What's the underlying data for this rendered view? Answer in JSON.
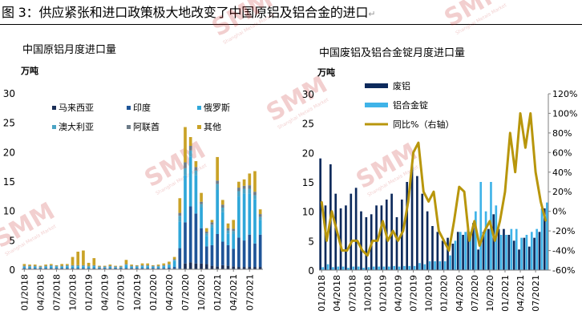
{
  "page_title": "图 3：供应紧张和进口政策极大地改变了中国原铝及铝合金的进口",
  "title_mark": "↵",
  "watermark": {
    "logo": "SMM",
    "sub": "Shanghai Metals Market"
  },
  "chart_data": [
    {
      "type": "bar",
      "stacked": true,
      "title": "中国原铝月度进口量",
      "ylabel": "万吨",
      "ylim": [
        0,
        30
      ],
      "yticks": [
        0,
        5,
        10,
        15,
        20,
        25,
        30
      ],
      "xtick_labels": [
        "01/2018",
        "04/2018",
        "07/2018",
        "10/2018",
        "01/2019",
        "04/2019",
        "07/2019",
        "10/2019",
        "01/2020",
        "04/2020",
        "07/2020",
        "10/2020",
        "01/2021",
        "04/2021",
        "07/2021"
      ],
      "legend_position": "top-left",
      "grid": false,
      "series": [
        {
          "name": "马来西亚",
          "color": "#1b2f57",
          "values": [
            0.1,
            0.1,
            0.1,
            0.1,
            0.1,
            0.1,
            0.1,
            0.1,
            0.1,
            0.1,
            0.1,
            0.1,
            0.1,
            0.1,
            0.1,
            0.1,
            0.1,
            0.1,
            0.1,
            0.1,
            0.1,
            0.1,
            0.1,
            0.1,
            0.1,
            0.1,
            0.1,
            0.1,
            0.1,
            0.1,
            1.0,
            1.2,
            1.0,
            1.0,
            0.9,
            0.6,
            0.5,
            0.7,
            0.6,
            0.5,
            0.4,
            0.4,
            0.4,
            0.4,
            0.4
          ]
        },
        {
          "name": "印度",
          "color": "#1f5598",
          "values": [
            0.1,
            0.1,
            0.1,
            0.1,
            0.1,
            0.1,
            0.1,
            0.1,
            0.1,
            0.1,
            0.1,
            0.1,
            0.1,
            0.1,
            0.1,
            0.1,
            0.1,
            0.1,
            0.1,
            0.1,
            0.1,
            0.1,
            0.1,
            0.1,
            0.1,
            0.1,
            0.1,
            0.2,
            0.3,
            3.5,
            7.0,
            9.5,
            8.5,
            6.0,
            3.0,
            3.5,
            5.5,
            4.0,
            3.5,
            3.0,
            5.0,
            4.5,
            5.5,
            4.0,
            5.5
          ]
        },
        {
          "name": "俄罗斯",
          "color": "#2fa7d9",
          "values": [
            0.2,
            0.2,
            0.2,
            0.1,
            0.2,
            0.3,
            0.2,
            0.2,
            0.3,
            0.3,
            0.3,
            0.3,
            0.2,
            0.3,
            0.1,
            0.1,
            0.2,
            0.1,
            0.1,
            0.5,
            0.2,
            0.2,
            0.3,
            0.3,
            0.2,
            0.2,
            0.3,
            0.4,
            1.0,
            4.5,
            8.0,
            8.5,
            6.5,
            3.5,
            1.8,
            3.0,
            7.5,
            5.0,
            2.0,
            2.5,
            7.0,
            8.0,
            7.0,
            7.5,
            2.5
          ]
        },
        {
          "name": "澳大利亚",
          "color": "#4aa4c4",
          "values": [
            0.1,
            0.1,
            0.1,
            0.1,
            0.1,
            0.1,
            0.1,
            0.1,
            0.1,
            0.1,
            0.1,
            0.1,
            0.1,
            0.1,
            0.1,
            0.1,
            0.1,
            0.1,
            0.1,
            0.1,
            0.1,
            0.1,
            0.1,
            0.1,
            0.1,
            0.1,
            0.1,
            0.1,
            0.2,
            1.0,
            1.2,
            1.0,
            0.8,
            0.6,
            0.4,
            0.5,
            1.0,
            0.8,
            0.5,
            0.5,
            0.9,
            0.8,
            0.8,
            0.7,
            0.5
          ]
        },
        {
          "name": "阿联酋",
          "color": "#6d7c88",
          "values": [
            0.1,
            0.1,
            0.1,
            0.1,
            0.1,
            0.1,
            0.1,
            0.1,
            0.1,
            0.1,
            0.1,
            0.1,
            0.1,
            0.1,
            0.1,
            0.1,
            0.1,
            0.1,
            0.1,
            0.1,
            0.1,
            0.1,
            0.1,
            0.1,
            0.1,
            0.1,
            0.1,
            0.1,
            0.1,
            0.5,
            1.0,
            0.8,
            0.6,
            0.4,
            0.3,
            0.4,
            0.6,
            0.5,
            0.4,
            0.4,
            0.6,
            0.5,
            0.6,
            0.6,
            0.5
          ]
        },
        {
          "name": "其他",
          "color": "#c9a227",
          "values": [
            0.3,
            0.2,
            0.2,
            0.1,
            0.2,
            0.2,
            0.1,
            0.3,
            0.2,
            1.4,
            2.3,
            2.5,
            0.5,
            1.2,
            0.1,
            0.1,
            0.2,
            0.1,
            0.1,
            0.7,
            0.2,
            0.1,
            0.3,
            0.3,
            0.1,
            0.2,
            0.3,
            0.4,
            0.4,
            2.5,
            6.0,
            1.5,
            1.0,
            1.5,
            0.6,
            0.4,
            4.0,
            0.8,
            0.8,
            1.5,
            1.0,
            1.1,
            2.0,
            3.5,
            0.8
          ]
        }
      ]
    },
    {
      "type": "bar+line",
      "title": "中国废铝及铝合金锭月度进口量",
      "ylabel": "万吨",
      "ylim": [
        0,
        30
      ],
      "yticks": [
        0,
        5,
        10,
        15,
        20,
        25,
        30
      ],
      "y2lim": [
        -60,
        120
      ],
      "y2ticks": [
        "-60%",
        "-40%",
        "-20%",
        "0%",
        "20%",
        "40%",
        "60%",
        "80%",
        "100%",
        "120%"
      ],
      "secondary_axis_unit": "%",
      "xtick_labels": [
        "01/2018",
        "04/2018",
        "07/2018",
        "10/2018",
        "01/2019",
        "04/2019",
        "07/2019",
        "10/2019",
        "01/2020",
        "04/2020",
        "07/2020",
        "10/2020",
        "01/2021",
        "04/2021",
        "07/2021"
      ],
      "legend_position": "top-left",
      "grid": false,
      "bar_series": [
        {
          "name": "废铝",
          "color": "#0d2a5c",
          "values": [
            19.0,
            11.0,
            18.0,
            13.0,
            10.5,
            11.0,
            13.0,
            14.0,
            10.0,
            9.0,
            9.5,
            11.0,
            11.0,
            12.0,
            13.0,
            9.0,
            12.0,
            15.0,
            18.0,
            16.0,
            13.0,
            10.0,
            7.5,
            6.5,
            5.0,
            5.5,
            4.5,
            6.5,
            6.0,
            7.0,
            8.0,
            3.5,
            6.5,
            7.0,
            9.5,
            7.0,
            7.0,
            6.0,
            5.0,
            3.5,
            5.5,
            4.0,
            5.5,
            6.5,
            10.5
          ]
        },
        {
          "name": "铝合金锭",
          "color": "#3fb3e8",
          "values": [
            0.5,
            1.0,
            0.5,
            0.6,
            0.6,
            0.4,
            0.6,
            0.6,
            0.4,
            0.5,
            0.6,
            0.6,
            0.6,
            0.6,
            0.7,
            0.6,
            0.7,
            0.7,
            0.7,
            1.2,
            1.0,
            1.5,
            1.5,
            1.5,
            1.5,
            2.5,
            5.0,
            6.5,
            6.5,
            6.5,
            10.0,
            15.0,
            10.0,
            15.0,
            11.0,
            6.0,
            6.0,
            7.0,
            7.0,
            5.5,
            6.0,
            6.5,
            7.0,
            10.5,
            11.5
          ]
        }
      ],
      "line_series": {
        "name": "同比%（右轴）",
        "color": "#b8960c",
        "values": [
          10,
          -30,
          0,
          -20,
          -40,
          -40,
          -30,
          -30,
          -40,
          -45,
          -30,
          -30,
          -10,
          -30,
          -20,
          -30,
          -20,
          10,
          60,
          70,
          20,
          10,
          20,
          -20,
          -30,
          -40,
          -10,
          25,
          20,
          -30,
          -10,
          -35,
          -20,
          -10,
          -30,
          -10,
          20,
          80,
          40,
          100,
          65,
          100,
          40,
          10,
          -10
        ]
      }
    }
  ]
}
